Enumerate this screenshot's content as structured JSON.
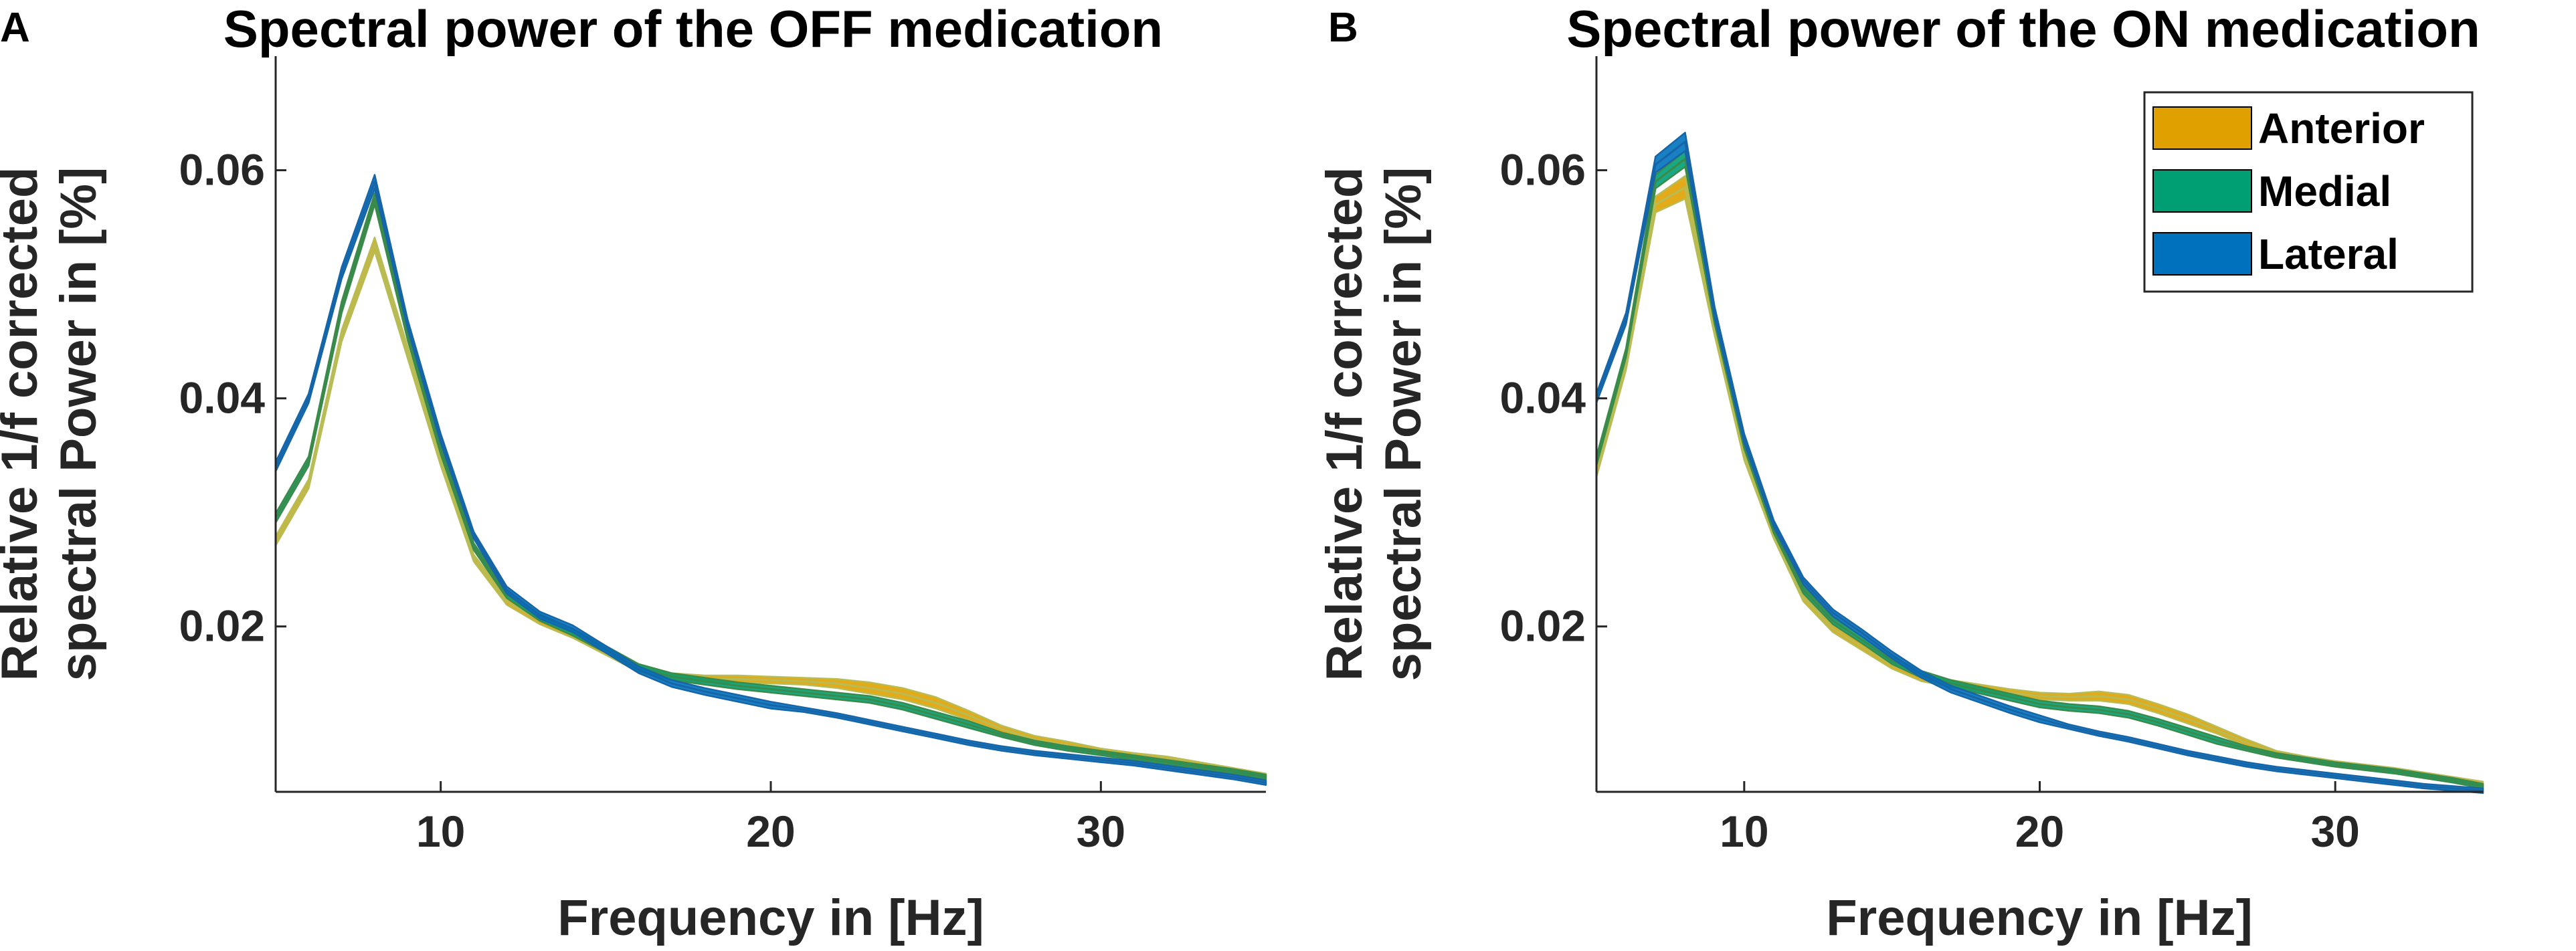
{
  "chart_data": [
    {
      "type": "area",
      "panel_letter": "A",
      "title": "Spectral power of the OFF medication",
      "xlabel": "Frequency in [Hz]",
      "ylabel": [
        "Relative 1/f corrected",
        "spectral Power in [%]"
      ],
      "xlim": [
        5,
        35
      ],
      "ylim": [
        0.0055,
        0.07
      ],
      "xticks": [
        10,
        20,
        30
      ],
      "xtick_labels": [
        "10",
        "20",
        "30"
      ],
      "yticks": [
        0.02,
        0.04,
        0.06
      ],
      "ytick_labels": [
        "0.02",
        "0.04",
        "0.06"
      ],
      "legend": null,
      "x": [
        5,
        6,
        7,
        8,
        9,
        10,
        11,
        12,
        13,
        14,
        15,
        16,
        17,
        18,
        19,
        20,
        21,
        22,
        23,
        24,
        25,
        26,
        27,
        28,
        29,
        30,
        31,
        32,
        33,
        34,
        35
      ],
      "series": [
        {
          "name": "Anterior",
          "color": "#E0A100",
          "edge_color": "#B8BC55",
          "mean": [
            0.0275,
            0.0325,
            0.0455,
            0.0535,
            0.044,
            0.0345,
            0.026,
            0.0222,
            0.0205,
            0.0193,
            0.0178,
            0.0163,
            0.0156,
            0.0154,
            0.0154,
            0.0153,
            0.0152,
            0.015,
            0.0146,
            0.0141,
            0.0133,
            0.0122,
            0.011,
            0.0101,
            0.0096,
            0.0091,
            0.0087,
            0.0084,
            0.0079,
            0.0074,
            0.0069
          ],
          "sem": [
            0.0004,
            0.0004,
            0.0005,
            0.0006,
            0.0005,
            0.0004,
            0.0003,
            0.0003,
            0.0003,
            0.0003,
            0.0003,
            0.0003,
            0.0003,
            0.0003,
            0.0003,
            0.0003,
            0.0003,
            0.0004,
            0.0005,
            0.0005,
            0.0005,
            0.0004,
            0.0003,
            0.0003,
            0.0003,
            0.0002,
            0.0002,
            0.0002,
            0.0002,
            0.0002,
            0.0002
          ]
        },
        {
          "name": "Medial",
          "color": "#009E73",
          "edge_color": "#3A8A4A",
          "mean": [
            0.0295,
            0.0345,
            0.048,
            0.0575,
            0.0455,
            0.0355,
            0.027,
            0.0228,
            0.0208,
            0.0195,
            0.018,
            0.0164,
            0.0156,
            0.0152,
            0.0148,
            0.0145,
            0.0142,
            0.0139,
            0.0136,
            0.013,
            0.0122,
            0.0114,
            0.0105,
            0.0098,
            0.0093,
            0.0089,
            0.0085,
            0.0081,
            0.0077,
            0.0073,
            0.0068
          ],
          "sem": [
            0.0004,
            0.0004,
            0.0005,
            0.0005,
            0.0004,
            0.0004,
            0.0003,
            0.0003,
            0.0003,
            0.0003,
            0.0003,
            0.0003,
            0.0003,
            0.0003,
            0.0003,
            0.0003,
            0.0003,
            0.0003,
            0.0003,
            0.0003,
            0.0003,
            0.0003,
            0.0002,
            0.0002,
            0.0002,
            0.0002,
            0.0002,
            0.0002,
            0.0002,
            0.0002,
            0.0002
          ]
        },
        {
          "name": "Lateral",
          "color": "#0072BD",
          "edge_color": "#1565A8",
          "mean": [
            0.034,
            0.04,
            0.051,
            0.059,
            0.0465,
            0.0365,
            0.028,
            0.0232,
            0.021,
            0.0198,
            0.018,
            0.0162,
            0.015,
            0.0143,
            0.0137,
            0.0131,
            0.0127,
            0.0122,
            0.0116,
            0.011,
            0.0104,
            0.0098,
            0.0093,
            0.0089,
            0.0086,
            0.0083,
            0.008,
            0.0076,
            0.0072,
            0.0068,
            0.0063
          ],
          "sem": [
            0.0004,
            0.0004,
            0.0005,
            0.0006,
            0.0004,
            0.0004,
            0.0003,
            0.0003,
            0.0003,
            0.0003,
            0.0003,
            0.0003,
            0.0003,
            0.0003,
            0.0003,
            0.0003,
            0.0002,
            0.0002,
            0.0002,
            0.0002,
            0.0002,
            0.0002,
            0.0002,
            0.0002,
            0.0002,
            0.0002,
            0.0002,
            0.0002,
            0.0002,
            0.0002,
            0.0002
          ]
        }
      ]
    },
    {
      "type": "area",
      "panel_letter": "B",
      "title": "Spectral power of the ON medication",
      "xlabel": "Frequency in [Hz]",
      "ylabel": [
        "Relative 1/f corrected",
        "spectral Power in [%]"
      ],
      "xlim": [
        5,
        35
      ],
      "ylim": [
        0.0055,
        0.07
      ],
      "xticks": [
        10,
        20,
        30
      ],
      "xtick_labels": [
        "10",
        "20",
        "30"
      ],
      "yticks": [
        0.02,
        0.04,
        0.06
      ],
      "ytick_labels": [
        "0.02",
        "0.04",
        "0.06"
      ],
      "legend": {
        "position": "top-right",
        "entries": [
          "Anterior",
          "Medial",
          "Lateral"
        ]
      },
      "x": [
        5,
        6,
        7,
        8,
        9,
        10,
        11,
        12,
        13,
        14,
        15,
        16,
        17,
        18,
        19,
        20,
        21,
        22,
        23,
        24,
        25,
        26,
        27,
        28,
        29,
        30,
        31,
        32,
        33,
        34,
        35
      ],
      "series": [
        {
          "name": "Anterior",
          "color": "#E0A100",
          "edge_color": "#B8BC55",
          "mean": [
            0.0335,
            0.043,
            0.057,
            0.0585,
            0.046,
            0.035,
            0.028,
            0.0225,
            0.0198,
            0.0182,
            0.0166,
            0.0155,
            0.015,
            0.0146,
            0.0142,
            0.0139,
            0.0138,
            0.0139,
            0.0136,
            0.0128,
            0.0119,
            0.0109,
            0.0098,
            0.0089,
            0.0084,
            0.008,
            0.0077,
            0.0074,
            0.007,
            0.0066,
            0.0062
          ],
          "sem": [
            0.0004,
            0.0005,
            0.0007,
            0.001,
            0.0005,
            0.0004,
            0.0003,
            0.0003,
            0.0003,
            0.0003,
            0.0003,
            0.0003,
            0.0003,
            0.0003,
            0.0003,
            0.0003,
            0.0003,
            0.0004,
            0.0004,
            0.0004,
            0.0004,
            0.0003,
            0.0003,
            0.0002,
            0.0002,
            0.0002,
            0.0002,
            0.0002,
            0.0002,
            0.0002,
            0.0002
          ]
        },
        {
          "name": "Medial",
          "color": "#009E73",
          "edge_color": "#3A8A4A",
          "mean": [
            0.0345,
            0.044,
            0.059,
            0.061,
            0.047,
            0.036,
            0.0285,
            0.0232,
            0.0205,
            0.0188,
            0.017,
            0.0158,
            0.015,
            0.0144,
            0.0138,
            0.0132,
            0.0129,
            0.0127,
            0.0123,
            0.0116,
            0.0108,
            0.01,
            0.0093,
            0.0087,
            0.0083,
            0.0079,
            0.0076,
            0.0073,
            0.0069,
            0.0065,
            0.006
          ],
          "sem": [
            0.0004,
            0.0004,
            0.0006,
            0.0007,
            0.0005,
            0.0004,
            0.0003,
            0.0003,
            0.0003,
            0.0003,
            0.0003,
            0.0003,
            0.0003,
            0.0003,
            0.0003,
            0.0003,
            0.0003,
            0.0003,
            0.0003,
            0.0003,
            0.0003,
            0.0003,
            0.0002,
            0.0002,
            0.0002,
            0.0002,
            0.0002,
            0.0002,
            0.0002,
            0.0002,
            0.0002
          ]
        },
        {
          "name": "Lateral",
          "color": "#0072BD",
          "edge_color": "#1565A8",
          "mean": [
            0.04,
            0.047,
            0.0605,
            0.0625,
            0.0475,
            0.0365,
            0.029,
            0.024,
            0.0212,
            0.0194,
            0.0175,
            0.0158,
            0.0145,
            0.0136,
            0.0127,
            0.0119,
            0.0112,
            0.0106,
            0.0101,
            0.0095,
            0.0089,
            0.0084,
            0.0079,
            0.0075,
            0.0072,
            0.0069,
            0.0066,
            0.0063,
            0.006,
            0.0058,
            0.0056
          ],
          "sem": [
            0.0004,
            0.0005,
            0.0007,
            0.0008,
            0.0005,
            0.0004,
            0.0003,
            0.0003,
            0.0003,
            0.0003,
            0.0003,
            0.0003,
            0.0003,
            0.0003,
            0.0003,
            0.0003,
            0.0002,
            0.0002,
            0.0002,
            0.0002,
            0.0002,
            0.0002,
            0.0002,
            0.0002,
            0.0002,
            0.0002,
            0.0002,
            0.0002,
            0.0002,
            0.0002,
            0.0002
          ]
        }
      ]
    }
  ]
}
